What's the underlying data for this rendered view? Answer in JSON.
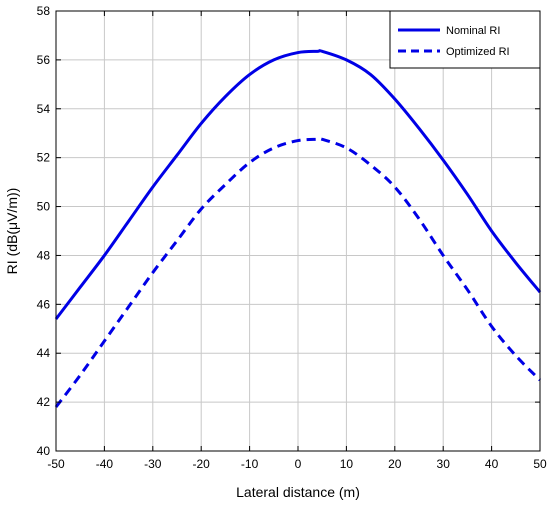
{
  "chart_data": {
    "type": "line",
    "title": "",
    "xlabel": "Lateral distance (m)",
    "ylabel": "RI (dB(μV/m))",
    "xlim": [
      -50,
      50
    ],
    "ylim": [
      40,
      58
    ],
    "xticks": [
      -50,
      -40,
      -30,
      -20,
      -10,
      0,
      10,
      20,
      30,
      40,
      50
    ],
    "yticks": [
      40,
      42,
      44,
      46,
      48,
      50,
      52,
      54,
      56,
      58
    ],
    "grid": true,
    "legend_position": "top-right",
    "series": [
      {
        "name": "Nominal RI",
        "style": "solid",
        "color": "#0000e6",
        "x": [
          -50,
          -45,
          -40,
          -35,
          -30,
          -25,
          -20,
          -15,
          -10,
          -5,
          0,
          4,
          5,
          10,
          15,
          20,
          25,
          30,
          35,
          40,
          45,
          50
        ],
        "y": [
          45.4,
          46.7,
          48.0,
          49.4,
          50.8,
          52.1,
          53.4,
          54.5,
          55.4,
          56.0,
          56.3,
          56.35,
          56.35,
          56.0,
          55.4,
          54.4,
          53.2,
          51.9,
          50.5,
          49.0,
          47.7,
          46.5
        ]
      },
      {
        "name": "Optimized RI",
        "style": "dashed",
        "color": "#0000e6",
        "x": [
          -50,
          -45,
          -40,
          -35,
          -30,
          -25,
          -20,
          -15,
          -10,
          -5,
          0,
          4,
          5,
          10,
          15,
          20,
          25,
          30,
          35,
          40,
          45,
          50
        ],
        "y": [
          41.8,
          43.1,
          44.5,
          45.9,
          47.3,
          48.6,
          49.9,
          50.9,
          51.8,
          52.4,
          52.7,
          52.75,
          52.75,
          52.4,
          51.7,
          50.8,
          49.5,
          48.0,
          46.6,
          45.1,
          43.9,
          42.9
        ]
      }
    ]
  }
}
